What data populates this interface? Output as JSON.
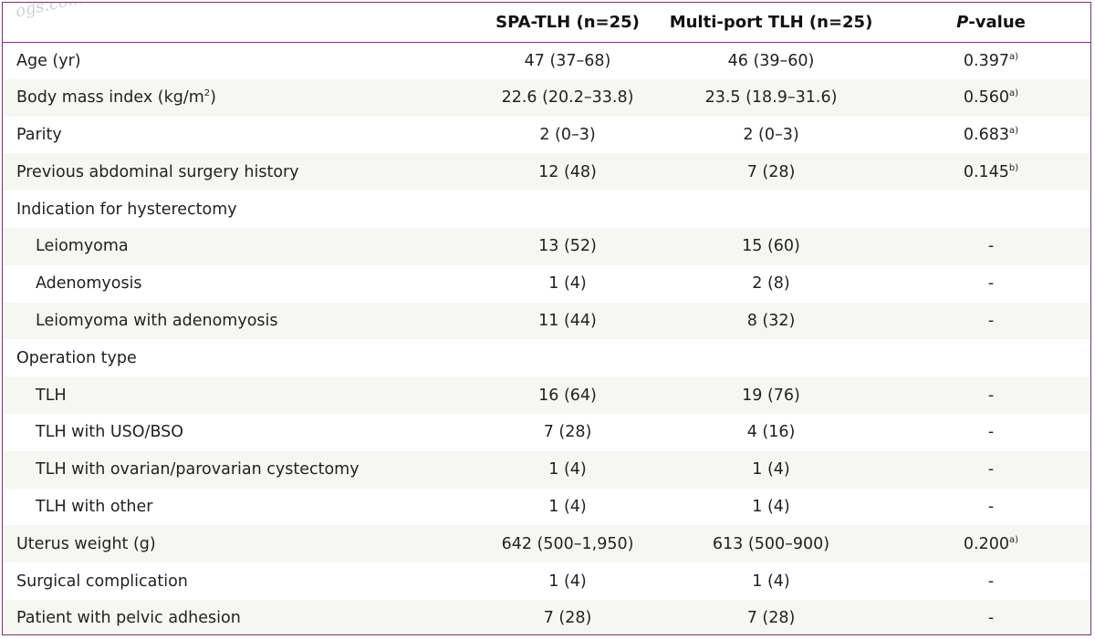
{
  "header": {
    "col_label": "",
    "col_spa": "SPA-TLH (n=25)",
    "col_multi": "Multi-port TLH (n=25)",
    "col_p_italic": "P",
    "col_p_rest": "-value"
  },
  "watermark": "ogs.com",
  "rows": [
    {
      "label": "Age (yr)",
      "spa": "47 (37–68)",
      "multi": "46 (39–60)",
      "p": "0.397",
      "sup": "a)"
    },
    {
      "label": "Body mass index (kg/m",
      "label_sup": "2",
      "label_end": ")",
      "spa": "22.6 (20.2–33.8)",
      "multi": "23.5 (18.9–31.6)",
      "p": "0.560",
      "sup": "a)"
    },
    {
      "label": "Parity",
      "spa": "2 (0–3)",
      "multi": "2 (0–3)",
      "p": "0.683",
      "sup": "a)"
    },
    {
      "label": "Previous abdominal surgery history",
      "spa": "12 (48)",
      "multi": "7 (28)",
      "p": "0.145",
      "sup": "b)"
    },
    {
      "label": "Indication for hysterectomy",
      "spa": "",
      "multi": "",
      "p": ""
    },
    {
      "label": "Leiomyoma",
      "spa": "13 (52)",
      "multi": "15 (60)",
      "p": "-"
    },
    {
      "label": "Adenomyosis",
      "spa": "1 (4)",
      "multi": "2 (8)",
      "p": "-"
    },
    {
      "label": "Leiomyoma with adenomyosis",
      "spa": "11 (44)",
      "multi": "8 (32)",
      "p": "-"
    },
    {
      "label": "Operation type",
      "spa": "",
      "multi": "",
      "p": ""
    },
    {
      "label": "TLH",
      "spa": "16 (64)",
      "multi": "19 (76)",
      "p": "-"
    },
    {
      "label": "TLH with USO/BSO",
      "spa": "7 (28)",
      "multi": "4 (16)",
      "p": "-"
    },
    {
      "label": "TLH with ovarian/parovarian cystectomy",
      "spa": "1 (4)",
      "multi": "1 (4)",
      "p": "-"
    },
    {
      "label": "TLH with other",
      "spa": "1 (4)",
      "multi": "1 (4)",
      "p": "-"
    },
    {
      "label": "Uterus weight (g)",
      "spa": "642 (500–1,950)",
      "multi": "613 (500–900)",
      "p": "0.200",
      "sup": "a)"
    },
    {
      "label": "Surgical complication",
      "spa": "1 (4)",
      "multi": "1 (4)",
      "p": "-"
    },
    {
      "label": "Patient with pelvic adhesion",
      "spa": "7 (28)",
      "multi": "7 (28)",
      "p": "-"
    }
  ]
}
